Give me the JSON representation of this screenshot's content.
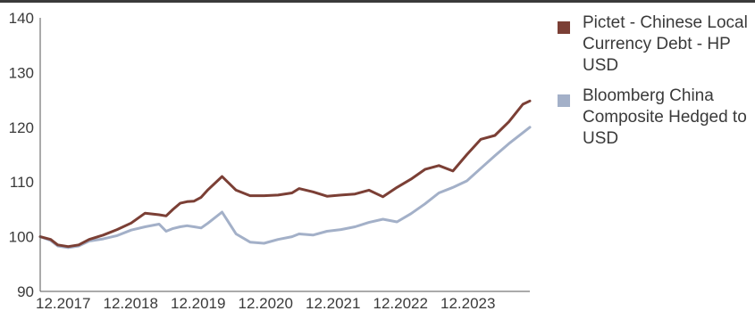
{
  "chart_data": {
    "type": "line",
    "x_tick_labels": [
      "12.2017",
      "12.2018",
      "12.2019",
      "12.2020",
      "12.2021",
      "12.2022",
      "12.2023"
    ],
    "y_tick_labels": [
      "90",
      "100",
      "110",
      "120",
      "130",
      "140"
    ],
    "ylim": [
      90,
      140
    ],
    "xlim": [
      2017.8,
      2024.8
    ],
    "grid": false,
    "legend_position": "right",
    "series": [
      {
        "name": "Pictet - Chinese Local Currency Debt - HP USD",
        "color": "#7b3f35",
        "x": [
          2017.8,
          2017.95,
          2018.05,
          2018.2,
          2018.35,
          2018.5,
          2018.7,
          2018.9,
          2019.1,
          2019.3,
          2019.5,
          2019.6,
          2019.7,
          2019.8,
          2019.9,
          2020.0,
          2020.1,
          2020.2,
          2020.4,
          2020.6,
          2020.8,
          2021.0,
          2021.2,
          2021.4,
          2021.5,
          2021.7,
          2021.9,
          2022.1,
          2022.3,
          2022.5,
          2022.7,
          2022.9,
          2023.1,
          2023.3,
          2023.5,
          2023.7,
          2023.9,
          2024.1,
          2024.3,
          2024.5,
          2024.7,
          2024.8
        ],
        "values": [
          100,
          99.5,
          98.5,
          98.2,
          98.5,
          99.5,
          100.3,
          101.3,
          102.5,
          104.3,
          104.0,
          103.8,
          105.0,
          106.1,
          106.4,
          106.5,
          107.2,
          108.6,
          111.0,
          108.5,
          107.5,
          107.5,
          107.6,
          108.0,
          108.8,
          108.2,
          107.4,
          107.6,
          107.8,
          108.5,
          107.3,
          109.0,
          110.5,
          112.3,
          113.0,
          112.0,
          115.0,
          117.8,
          118.5,
          121.0,
          124.2,
          124.8
        ]
      },
      {
        "name": "Bloomberg China Composite Hedged to USD",
        "color": "#a3b0c8",
        "x": [
          2017.8,
          2017.95,
          2018.05,
          2018.2,
          2018.35,
          2018.5,
          2018.7,
          2018.9,
          2019.1,
          2019.3,
          2019.5,
          2019.6,
          2019.7,
          2019.8,
          2019.9,
          2020.0,
          2020.1,
          2020.2,
          2020.4,
          2020.6,
          2020.8,
          2021.0,
          2021.2,
          2021.4,
          2021.5,
          2021.7,
          2021.9,
          2022.1,
          2022.3,
          2022.5,
          2022.7,
          2022.9,
          2023.1,
          2023.3,
          2023.5,
          2023.7,
          2023.9,
          2024.1,
          2024.3,
          2024.5,
          2024.7,
          2024.8
        ],
        "values": [
          100,
          99.3,
          98.3,
          98.0,
          98.3,
          99.2,
          99.6,
          100.2,
          101.2,
          101.8,
          102.3,
          101.0,
          101.5,
          101.8,
          102.0,
          101.8,
          101.6,
          102.5,
          104.5,
          100.5,
          99.0,
          98.8,
          99.5,
          100.0,
          100.5,
          100.3,
          101.0,
          101.3,
          101.8,
          102.6,
          103.2,
          102.7,
          104.2,
          106.0,
          108.0,
          109.0,
          110.2,
          112.5,
          114.8,
          117.0,
          119.0,
          120.0
        ]
      }
    ]
  }
}
